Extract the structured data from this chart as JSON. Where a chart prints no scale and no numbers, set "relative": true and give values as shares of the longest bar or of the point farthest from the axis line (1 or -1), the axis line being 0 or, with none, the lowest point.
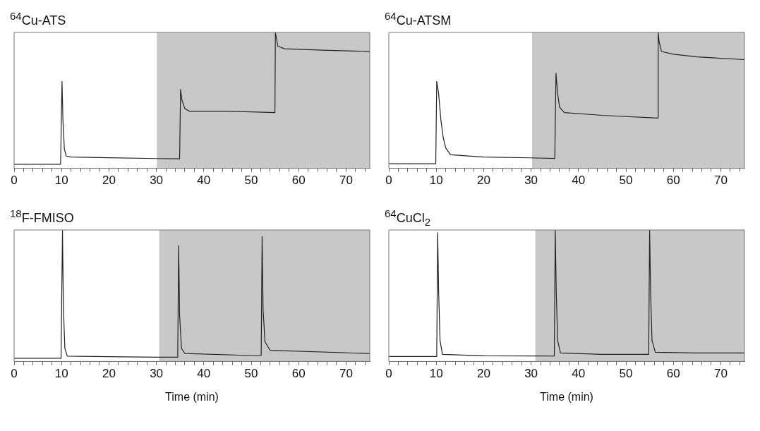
{
  "chart_data": [
    {
      "type": "line",
      "title": "$^{64}$Cu-ATS",
      "relative": true,
      "xlim": [
        0,
        75
      ],
      "xticks": [
        0,
        {
          "value": 2,
          "label": null
        },
        {
          "value": 4,
          "label": null
        },
        {
          "value": 6,
          "label": null
        },
        {
          "value": 8,
          "label": null
        },
        10,
        {
          "value": 12,
          "label": null
        },
        {
          "value": 14,
          "label": null
        },
        {
          "value": 16,
          "label": null
        },
        {
          "value": 18,
          "label": null
        },
        20,
        {
          "value": 22,
          "label": null
        },
        {
          "value": 24,
          "label": null
        },
        {
          "value": 26,
          "label": null
        },
        {
          "value": 28,
          "label": null
        },
        30,
        {
          "value": 32,
          "label": null
        },
        {
          "value": 34,
          "label": null
        },
        {
          "value": 36,
          "label": null
        },
        {
          "value": 38,
          "label": null
        },
        40,
        {
          "value": 42,
          "label": null
        },
        {
          "value": 44,
          "label": null
        },
        {
          "value": 46,
          "label": null
        },
        {
          "value": 48,
          "label": null
        },
        50,
        {
          "value": 52,
          "label": null
        },
        {
          "value": 54,
          "label": null
        },
        {
          "value": 56,
          "label": null
        },
        {
          "value": 58,
          "label": null
        },
        60,
        {
          "value": 62,
          "label": null
        },
        {
          "value": 64,
          "label": null
        },
        {
          "value": 66,
          "label": null
        },
        {
          "value": 68,
          "label": null
        },
        70,
        {
          "value": 72,
          "label": null
        },
        {
          "value": 74,
          "label": null
        }
      ],
      "x": [
        0,
        9.8,
        10.1,
        10.3,
        10.6,
        11,
        12,
        20,
        30,
        34.9,
        35.1,
        35.4,
        36,
        37,
        45,
        55,
        55.1,
        55.2,
        55.6,
        57,
        65,
        75
      ],
      "series": [
        {
          "color": "#222222",
          "values": [
            0.03,
            0.03,
            0.64,
            0.35,
            0.14,
            0.09,
            0.083,
            0.078,
            0.072,
            0.07,
            0.58,
            0.5,
            0.44,
            0.42,
            0.42,
            0.41,
            1.0,
            1.0,
            0.9,
            0.88,
            0.87,
            0.86
          ]
        }
      ],
      "bands": [
        {
          "axis": "x",
          "from": 30.1,
          "to": 75,
          "color": "#c8c8c8"
        }
      ]
    },
    {
      "type": "line",
      "title": "$^{64}$Cu-ATSM",
      "relative": true,
      "xlim": [
        0,
        75
      ],
      "xticks": [
        0,
        {
          "value": 2,
          "label": null
        },
        {
          "value": 4,
          "label": null
        },
        {
          "value": 6,
          "label": null
        },
        {
          "value": 8,
          "label": null
        },
        10,
        {
          "value": 12,
          "label": null
        },
        {
          "value": 14,
          "label": null
        },
        {
          "value": 16,
          "label": null
        },
        {
          "value": 18,
          "label": null
        },
        20,
        {
          "value": 22,
          "label": null
        },
        {
          "value": 24,
          "label": null
        },
        {
          "value": 26,
          "label": null
        },
        {
          "value": 28,
          "label": null
        },
        30,
        {
          "value": 32,
          "label": null
        },
        {
          "value": 34,
          "label": null
        },
        {
          "value": 36,
          "label": null
        },
        {
          "value": 38,
          "label": null
        },
        40,
        {
          "value": 42,
          "label": null
        },
        {
          "value": 44,
          "label": null
        },
        {
          "value": 46,
          "label": null
        },
        {
          "value": 48,
          "label": null
        },
        50,
        {
          "value": 52,
          "label": null
        },
        {
          "value": 54,
          "label": null
        },
        {
          "value": 56,
          "label": null
        },
        {
          "value": 58,
          "label": null
        },
        60,
        {
          "value": 62,
          "label": null
        },
        {
          "value": 64,
          "label": null
        },
        {
          "value": 66,
          "label": null
        },
        {
          "value": 68,
          "label": null
        },
        70,
        {
          "value": 72,
          "label": null
        },
        {
          "value": 74,
          "label": null
        }
      ],
      "x": [
        0,
        9.9,
        10.1,
        10.5,
        11,
        11.5,
        12,
        13,
        20,
        30,
        35,
        35.25,
        35.6,
        36,
        37,
        45,
        56.7,
        56.8,
        57,
        57.5,
        60,
        65,
        75
      ],
      "series": [
        {
          "color": "#222222",
          "values": [
            0.034,
            0.034,
            0.64,
            0.55,
            0.35,
            0.22,
            0.15,
            0.1,
            0.083,
            0.077,
            0.073,
            0.7,
            0.55,
            0.45,
            0.41,
            0.39,
            0.37,
            1.0,
            0.93,
            0.86,
            0.84,
            0.82,
            0.8
          ]
        }
      ],
      "bands": [
        {
          "axis": "x",
          "from": 30.2,
          "to": 75,
          "color": "#c8c8c8"
        }
      ]
    },
    {
      "type": "line",
      "title": "$^{18}$F-FMISO",
      "xlabel": "Time (min)",
      "relative": true,
      "xlim": [
        0,
        75
      ],
      "xticks": [
        0,
        {
          "value": 2,
          "label": null
        },
        {
          "value": 4,
          "label": null
        },
        {
          "value": 6,
          "label": null
        },
        {
          "value": 8,
          "label": null
        },
        10,
        {
          "value": 12,
          "label": null
        },
        {
          "value": 14,
          "label": null
        },
        {
          "value": 16,
          "label": null
        },
        {
          "value": 18,
          "label": null
        },
        20,
        {
          "value": 22,
          "label": null
        },
        {
          "value": 24,
          "label": null
        },
        {
          "value": 26,
          "label": null
        },
        {
          "value": 28,
          "label": null
        },
        30,
        {
          "value": 32,
          "label": null
        },
        {
          "value": 34,
          "label": null
        },
        {
          "value": 36,
          "label": null
        },
        {
          "value": 38,
          "label": null
        },
        40,
        {
          "value": 42,
          "label": null
        },
        {
          "value": 44,
          "label": null
        },
        {
          "value": 46,
          "label": null
        },
        {
          "value": 48,
          "label": null
        },
        50,
        {
          "value": 52,
          "label": null
        },
        {
          "value": 54,
          "label": null
        },
        {
          "value": 56,
          "label": null
        },
        {
          "value": 58,
          "label": null
        },
        60,
        {
          "value": 62,
          "label": null
        },
        {
          "value": 64,
          "label": null
        },
        {
          "value": 66,
          "label": null
        },
        {
          "value": 68,
          "label": null
        },
        70,
        {
          "value": 72,
          "label": null
        },
        {
          "value": 74,
          "label": null
        }
      ],
      "x": [
        0,
        9.9,
        10.2,
        10.4,
        10.7,
        11.2,
        20,
        30,
        34.5,
        34.7,
        34.9,
        35.3,
        36,
        50,
        52.1,
        52.3,
        52.5,
        52.9,
        54,
        75
      ],
      "series": [
        {
          "color": "#222222",
          "values": [
            0.024,
            0.024,
            1.0,
            0.4,
            0.1,
            0.04,
            0.036,
            0.032,
            0.032,
            0.88,
            0.35,
            0.1,
            0.06,
            0.045,
            0.045,
            0.95,
            0.4,
            0.15,
            0.085,
            0.06
          ]
        }
      ],
      "bands": [
        {
          "axis": "x",
          "from": 30.6,
          "to": 75,
          "color": "#c8c8c8"
        }
      ]
    },
    {
      "type": "line",
      "title": "$^{64}$CuCl$_{2}$",
      "xlabel": "Time (min)",
      "relative": true,
      "xlim": [
        0,
        75
      ],
      "xticks": [
        0,
        {
          "value": 2,
          "label": null
        },
        {
          "value": 4,
          "label": null
        },
        {
          "value": 6,
          "label": null
        },
        {
          "value": 8,
          "label": null
        },
        10,
        {
          "value": 12,
          "label": null
        },
        {
          "value": 14,
          "label": null
        },
        {
          "value": 16,
          "label": null
        },
        {
          "value": 18,
          "label": null
        },
        20,
        {
          "value": 22,
          "label": null
        },
        {
          "value": 24,
          "label": null
        },
        {
          "value": 26,
          "label": null
        },
        {
          "value": 28,
          "label": null
        },
        30,
        {
          "value": 32,
          "label": null
        },
        {
          "value": 34,
          "label": null
        },
        {
          "value": 36,
          "label": null
        },
        {
          "value": 38,
          "label": null
        },
        40,
        {
          "value": 42,
          "label": null
        },
        {
          "value": 44,
          "label": null
        },
        {
          "value": 46,
          "label": null
        },
        {
          "value": 48,
          "label": null
        },
        50,
        {
          "value": 52,
          "label": null
        },
        {
          "value": 54,
          "label": null
        },
        {
          "value": 56,
          "label": null
        },
        {
          "value": 58,
          "label": null
        },
        60,
        {
          "value": 62,
          "label": null
        },
        {
          "value": 64,
          "label": null
        },
        {
          "value": 66,
          "label": null
        },
        {
          "value": 68,
          "label": null
        },
        70,
        {
          "value": 72,
          "label": null
        },
        {
          "value": 74,
          "label": null
        }
      ],
      "x": [
        0,
        10.1,
        10.3,
        10.5,
        10.8,
        11.3,
        20,
        34.9,
        35.1,
        35.3,
        35.6,
        36.2,
        45,
        54.8,
        55,
        55.2,
        55.5,
        56.2,
        65,
        75
      ],
      "series": [
        {
          "color": "#222222",
          "values": [
            0.038,
            0.038,
            0.98,
            0.54,
            0.16,
            0.054,
            0.043,
            0.041,
            1.0,
            0.54,
            0.16,
            0.065,
            0.054,
            0.054,
            1.0,
            0.54,
            0.16,
            0.07,
            0.065,
            0.065
          ]
        }
      ],
      "bands": [
        {
          "axis": "x",
          "from": 30.9,
          "to": 75,
          "color": "#c8c8c8"
        }
      ]
    }
  ]
}
